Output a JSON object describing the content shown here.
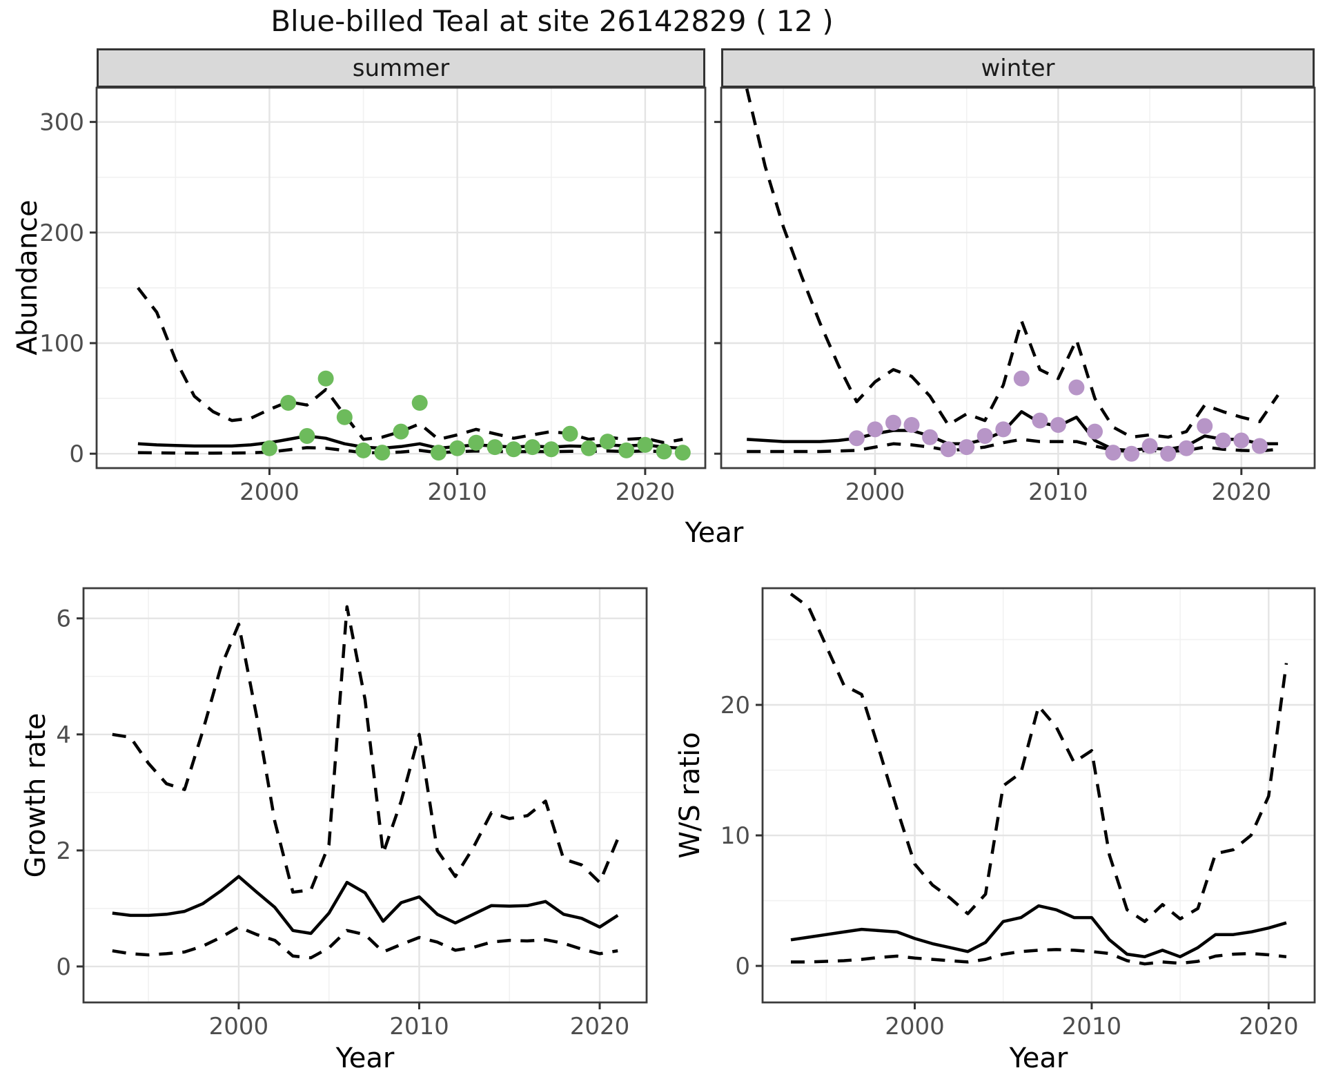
{
  "title": "Blue-billed Teal at site 26142829 ( 12 )",
  "facets": {
    "summer_label": "summer",
    "winter_label": "winter"
  },
  "axis_titles": {
    "abundance": "Abundance",
    "year_top": "Year",
    "growth": "Growth rate",
    "year_growth": "Year",
    "ws": "W/S ratio",
    "year_ws": "Year"
  },
  "style": {
    "median_color": "#000000",
    "ci_color": "#000000",
    "summer_point_color": "#6dbb5c",
    "winter_point_color": "#b795c7",
    "grid_major_color": "#e4e4e4",
    "grid_minor_color": "#f1f1f1",
    "panel_border_color": "#3c3c3c",
    "tick_label_color": "#4d4d4d",
    "strip_fill": "#d9d9d9"
  },
  "chart_data": [
    {
      "id": "abundance-summer",
      "type": "line",
      "facet": "summer",
      "ylabel": "Abundance",
      "xlabel": "Year",
      "xlim": [
        1990.8,
        2023.2
      ],
      "ylim": [
        -13,
        331
      ],
      "x_major": [
        2000,
        2010,
        2020
      ],
      "x_major_labels": [
        "2000",
        "2010",
        "2020"
      ],
      "x_minor": [
        1995,
        2005,
        2015
      ],
      "y_major": [
        0,
        100,
        200,
        300
      ],
      "y_major_labels": [
        "0",
        "100",
        "200",
        "300"
      ],
      "y_minor": [
        50,
        150,
        250
      ],
      "show_y_tick_labels": true,
      "point_color": "#6dbb5c",
      "x": [
        1993,
        1994,
        1995,
        1996,
        1997,
        1998,
        1999,
        2000,
        2001,
        2002,
        2003,
        2004,
        2005,
        2006,
        2007,
        2008,
        2009,
        2010,
        2011,
        2012,
        2013,
        2014,
        2015,
        2016,
        2017,
        2018,
        2019,
        2020,
        2021,
        2022
      ],
      "series": [
        {
          "name": "upper95",
          "style": "dashed",
          "values": [
            150,
            128,
            85,
            52,
            38,
            30,
            32,
            40,
            47,
            44,
            58,
            35,
            13,
            15,
            20,
            27,
            13,
            17,
            22,
            18,
            14,
            17,
            20,
            18,
            13,
            15,
            13,
            14,
            10,
            13
          ]
        },
        {
          "name": "median",
          "style": "solid",
          "values": [
            9,
            8,
            7.5,
            7,
            7,
            7,
            8,
            10,
            13,
            16,
            14,
            9,
            6,
            5,
            6.5,
            9,
            5,
            6.5,
            8,
            7,
            6,
            7,
            6,
            7,
            6.5,
            8,
            7,
            8,
            6,
            5
          ]
        },
        {
          "name": "lower95",
          "style": "dashed",
          "values": [
            1,
            0.8,
            0.6,
            0.5,
            0.5,
            0.6,
            0.8,
            1.5,
            3.5,
            5.5,
            5,
            3,
            1,
            0.8,
            1.5,
            3,
            1,
            1.8,
            2.5,
            2,
            1.8,
            2,
            1.8,
            2.2,
            2,
            2.5,
            2,
            2.5,
            1.8,
            2.5
          ]
        }
      ],
      "points": {
        "x": [
          2000,
          2001,
          2002,
          2003,
          2004,
          2005,
          2006,
          2007,
          2008,
          2009,
          2010,
          2011,
          2012,
          2013,
          2014,
          2015,
          2016,
          2017,
          2018,
          2019,
          2020,
          2021,
          2022
        ],
        "y": [
          5,
          46,
          16,
          68,
          33,
          3,
          1,
          20,
          46,
          1,
          5,
          10,
          6,
          4,
          6,
          4,
          18,
          5,
          11,
          3,
          8,
          2,
          1
        ]
      }
    },
    {
      "id": "abundance-winter",
      "type": "line",
      "facet": "winter",
      "ylabel": "Abundance",
      "xlabel": "Year",
      "xlim": [
        1991.6,
        2024.0
      ],
      "ylim": [
        -13,
        331
      ],
      "x_major": [
        2000,
        2010,
        2020
      ],
      "x_major_labels": [
        "2000",
        "2010",
        "2020"
      ],
      "x_minor": [
        1995,
        2005,
        2015
      ],
      "y_major": [
        0,
        100,
        200,
        300
      ],
      "y_major_labels": [
        "0",
        "100",
        "200",
        "300"
      ],
      "y_minor": [
        50,
        150,
        250
      ],
      "show_y_tick_labels": false,
      "point_color": "#b795c7",
      "x": [
        1993,
        1994,
        1995,
        1996,
        1997,
        1998,
        1999,
        2000,
        2001,
        2002,
        2003,
        2004,
        2005,
        2006,
        2007,
        2008,
        2009,
        2010,
        2011,
        2012,
        2013,
        2014,
        2015,
        2016,
        2017,
        2018,
        2019,
        2020,
        2021,
        2022
      ],
      "series": [
        {
          "name": "upper95",
          "style": "dashed",
          "values": [
            330,
            260,
            205,
            160,
            118,
            80,
            47,
            65,
            76,
            70,
            52,
            26,
            36,
            30,
            62,
            120,
            76,
            68,
            103,
            50,
            24,
            15,
            17,
            15,
            20,
            44,
            38,
            33,
            29,
            53
          ]
        },
        {
          "name": "median",
          "style": "solid",
          "values": [
            13,
            12,
            11,
            11,
            11,
            12,
            14,
            18,
            21,
            21,
            16,
            9,
            9,
            13,
            20,
            38,
            28,
            25,
            33,
            12,
            4,
            3,
            5,
            4,
            7,
            16,
            13,
            13,
            9,
            9
          ]
        },
        {
          "name": "lower95",
          "style": "dashed",
          "values": [
            2,
            2,
            2,
            2,
            2,
            2.5,
            3,
            6,
            9,
            8,
            6,
            3,
            4,
            6,
            10,
            13,
            11,
            11,
            11,
            7,
            3,
            2,
            3,
            2,
            3,
            6,
            4,
            3,
            2.5,
            4
          ]
        }
      ],
      "points": {
        "x": [
          1999,
          2000,
          2001,
          2002,
          2003,
          2004,
          2005,
          2006,
          2007,
          2008,
          2009,
          2010,
          2011,
          2012,
          2013,
          2014,
          2015,
          2016,
          2017,
          2018,
          2019,
          2020,
          2021
        ],
        "y": [
          14,
          22,
          28,
          26,
          15,
          4,
          6,
          16,
          22,
          68,
          30,
          26,
          60,
          20,
          1,
          0,
          7,
          0,
          5,
          25,
          12,
          12,
          7
        ]
      }
    },
    {
      "id": "growth-rate",
      "type": "line",
      "ylabel": "Growth rate",
      "xlabel": "Year",
      "xlim": [
        1991.4,
        2022.6
      ],
      "ylim": [
        -0.62,
        6.52
      ],
      "x_major": [
        2000,
        2010,
        2020
      ],
      "x_major_labels": [
        "2000",
        "2010",
        "2020"
      ],
      "x_minor": [
        1995,
        2005,
        2015
      ],
      "y_major": [
        0,
        2,
        4,
        6
      ],
      "y_major_labels": [
        "0",
        "2",
        "4",
        "6"
      ],
      "y_minor": [
        1,
        3,
        5
      ],
      "show_y_tick_labels": true,
      "point_color": null,
      "x": [
        1993,
        1994,
        1995,
        1996,
        1997,
        1998,
        1999,
        2000,
        2001,
        2002,
        2003,
        2004,
        2005,
        2006,
        2007,
        2008,
        2009,
        2010,
        2011,
        2012,
        2013,
        2014,
        2015,
        2016,
        2017,
        2018,
        2019,
        2020,
        2021
      ],
      "series": [
        {
          "name": "upper95",
          "style": "dashed",
          "values": [
            4.0,
            3.95,
            3.5,
            3.15,
            3.05,
            4.05,
            5.15,
            5.9,
            4.3,
            2.5,
            1.28,
            1.32,
            2.1,
            6.2,
            4.6,
            1.95,
            2.85,
            4.0,
            2.0,
            1.55,
            2.05,
            2.65,
            2.55,
            2.6,
            2.85,
            1.85,
            1.75,
            1.45,
            2.2
          ]
        },
        {
          "name": "median",
          "style": "solid",
          "values": [
            0.92,
            0.88,
            0.88,
            0.9,
            0.95,
            1.08,
            1.3,
            1.55,
            1.28,
            1.02,
            0.62,
            0.57,
            0.92,
            1.45,
            1.27,
            0.78,
            1.1,
            1.2,
            0.9,
            0.75,
            0.9,
            1.05,
            1.04,
            1.05,
            1.12,
            0.9,
            0.83,
            0.68,
            0.88
          ]
        },
        {
          "name": "lower95",
          "style": "dashed",
          "values": [
            0.27,
            0.22,
            0.2,
            0.22,
            0.25,
            0.35,
            0.5,
            0.68,
            0.55,
            0.45,
            0.18,
            0.15,
            0.32,
            0.62,
            0.55,
            0.25,
            0.38,
            0.5,
            0.42,
            0.28,
            0.33,
            0.42,
            0.45,
            0.44,
            0.46,
            0.4,
            0.3,
            0.22,
            0.27
          ]
        }
      ],
      "points": null
    },
    {
      "id": "ws-ratio",
      "type": "line",
      "ylabel": "W/S ratio",
      "xlabel": "Year",
      "xlim": [
        1991.4,
        2022.6
      ],
      "ylim": [
        -2.8,
        28.94
      ],
      "x_major": [
        2000,
        2010,
        2020
      ],
      "x_major_labels": [
        "2000",
        "2010",
        "2020"
      ],
      "x_minor": [
        1995,
        2005,
        2015
      ],
      "y_major": [
        0,
        10,
        20
      ],
      "y_major_labels": [
        "0",
        "10",
        "20"
      ],
      "y_minor": [
        5,
        15,
        25
      ],
      "show_y_tick_labels": true,
      "point_color": null,
      "x": [
        1993,
        1994,
        1995,
        1996,
        1997,
        1998,
        1999,
        2000,
        2001,
        2002,
        2003,
        2004,
        2005,
        2006,
        2007,
        2008,
        2009,
        2010,
        2011,
        2012,
        2013,
        2014,
        2015,
        2016,
        2017,
        2018,
        2019,
        2020,
        2021
      ],
      "series": [
        {
          "name": "upper95",
          "style": "dashed",
          "values": [
            28.5,
            27.5,
            24.5,
            21.5,
            20.8,
            16.5,
            12.0,
            7.8,
            6.2,
            5.2,
            4.0,
            5.5,
            13.8,
            14.8,
            19.9,
            18.3,
            15.6,
            16.5,
            8.5,
            4.3,
            3.4,
            4.7,
            3.6,
            4.4,
            8.6,
            8.9,
            10.0,
            13.0,
            23.2
          ]
        },
        {
          "name": "median",
          "style": "solid",
          "values": [
            2.0,
            2.2,
            2.4,
            2.6,
            2.8,
            2.7,
            2.6,
            2.1,
            1.7,
            1.4,
            1.1,
            1.8,
            3.4,
            3.7,
            4.6,
            4.3,
            3.7,
            3.7,
            2.0,
            0.9,
            0.7,
            1.2,
            0.7,
            1.4,
            2.4,
            2.4,
            2.6,
            2.9,
            3.3
          ]
        },
        {
          "name": "lower95",
          "style": "dashed",
          "values": [
            0.3,
            0.3,
            0.35,
            0.4,
            0.5,
            0.65,
            0.75,
            0.6,
            0.5,
            0.4,
            0.3,
            0.5,
            0.9,
            1.1,
            1.2,
            1.25,
            1.2,
            1.1,
            0.95,
            0.4,
            0.15,
            0.3,
            0.2,
            0.35,
            0.75,
            0.9,
            0.95,
            0.85,
            0.7
          ]
        }
      ],
      "points": null
    }
  ]
}
